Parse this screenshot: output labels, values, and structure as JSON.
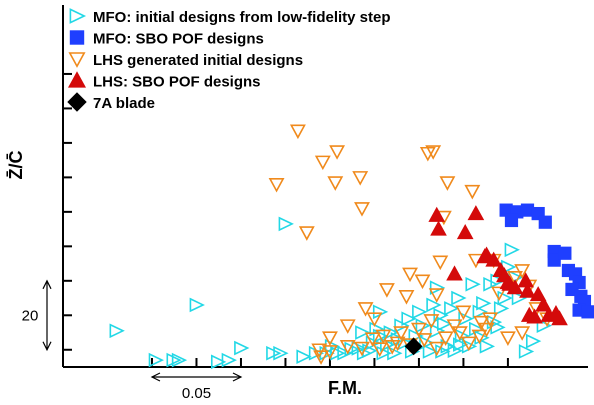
{
  "chart_data": {
    "type": "scatter",
    "xlabel": "F.M.",
    "ylabel": "Z̄/C̄",
    "xlim": [
      -0.05,
      0.245
    ],
    "ylim": [
      -5,
      100
    ],
    "x_ticks": [
      0,
      0.025,
      0.05,
      0.075,
      0.1,
      0.125,
      0.15,
      0.175,
      0.2
    ],
    "y_ticks": [
      0,
      10,
      20,
      30,
      40,
      50,
      60,
      70,
      80
    ],
    "scale_annotations": {
      "x_text": "0.05",
      "y_text": "20"
    },
    "grid": false,
    "legend": "top-left",
    "series": [
      {
        "name": "MFO: initial designs from low-fidelity step",
        "marker": "triangle-right-open",
        "color": "#22d8e6",
        "points": [
          [
            -0.02,
            5.5
          ],
          [
            0.002,
            -3
          ],
          [
            0.012,
            -3
          ],
          [
            0.015,
            -3
          ],
          [
            0.025,
            13
          ],
          [
            0.037,
            -3.5
          ],
          [
            0.043,
            -3
          ],
          [
            0.05,
            0.5
          ],
          [
            0.075,
            36.5
          ],
          [
            0.068,
            -1
          ],
          [
            0.072,
            -1
          ],
          [
            0.085,
            -2
          ],
          [
            0.092,
            -1
          ],
          [
            0.098,
            -1
          ],
          [
            0.101,
            1
          ],
          [
            0.104,
            -1
          ],
          [
            0.108,
            -1
          ],
          [
            0.112,
            0.2
          ],
          [
            0.116,
            0.4
          ],
          [
            0.119,
            -1
          ],
          [
            0.122,
            -0.3
          ],
          [
            0.124,
            2
          ],
          [
            0.126,
            6
          ],
          [
            0.128,
            4
          ],
          [
            0.13,
            -1
          ],
          [
            0.132,
            1.5
          ],
          [
            0.134,
            5
          ],
          [
            0.136,
            -1
          ],
          [
            0.138,
            3
          ],
          [
            0.14,
            7
          ],
          [
            0.142,
            2
          ],
          [
            0.144,
            9
          ],
          [
            0.146,
            -0.5
          ],
          [
            0.148,
            4
          ],
          [
            0.15,
            11
          ],
          [
            0.152,
            7
          ],
          [
            0.154,
            2
          ],
          [
            0.156,
            -0.5
          ],
          [
            0.158,
            13
          ],
          [
            0.16,
            5.5
          ],
          [
            0.162,
            10
          ],
          [
            0.164,
            7.5
          ],
          [
            0.166,
            1
          ],
          [
            0.168,
            12
          ],
          [
            0.17,
            -0.3
          ],
          [
            0.172,
            15
          ],
          [
            0.174,
            4
          ],
          [
            0.176,
            9
          ],
          [
            0.178,
            1
          ],
          [
            0.18,
            19
          ],
          [
            0.182,
            6
          ],
          [
            0.184,
            11
          ],
          [
            0.186,
            13.5
          ],
          [
            0.188,
            1
          ],
          [
            0.19,
            19
          ],
          [
            0.192,
            8
          ],
          [
            0.194,
            20
          ],
          [
            0.196,
            12
          ],
          [
            0.198,
            15
          ],
          [
            0.2,
            24
          ],
          [
            0.202,
            29
          ],
          [
            0.204,
            21
          ],
          [
            0.206,
            15
          ],
          [
            0.21,
            -0.5
          ],
          [
            0.214,
            2.5
          ],
          [
            0.22,
            7
          ],
          [
            0.16,
            18
          ],
          [
            0.118,
            5
          ],
          [
            0.128,
            11
          ],
          [
            0.163,
            -0.5
          ],
          [
            0.173,
            1.5
          ],
          [
            0.185,
            3.5
          ],
          [
            0.194,
            6.5
          ]
        ]
      },
      {
        "name": "MFO: SBO POF designs",
        "marker": "square",
        "color": "#1f3fff",
        "points": [
          [
            0.199,
            40.5
          ],
          [
            0.205,
            40
          ],
          [
            0.211,
            40.5
          ],
          [
            0.217,
            39.5
          ],
          [
            0.202,
            37.5
          ],
          [
            0.221,
            37
          ],
          [
            0.226,
            28.5
          ],
          [
            0.226,
            26
          ],
          [
            0.232,
            28
          ],
          [
            0.234,
            23
          ],
          [
            0.238,
            22
          ],
          [
            0.24,
            19.5
          ],
          [
            0.236,
            17.5
          ],
          [
            0.241,
            15.5
          ],
          [
            0.243,
            14
          ],
          [
            0.24,
            11.5
          ],
          [
            0.245,
            11
          ]
        ]
      },
      {
        "name": "LHS generated initial designs",
        "marker": "triangle-down-open",
        "color": "#f08a1c",
        "points": [
          [
            0.082,
            63.5
          ],
          [
            0.096,
            54.5
          ],
          [
            0.104,
            57.5
          ],
          [
            0.07,
            48
          ],
          [
            0.087,
            34
          ],
          [
            0.103,
            48.5
          ],
          [
            0.117,
            50
          ],
          [
            0.118,
            41
          ],
          [
            0.155,
            57
          ],
          [
            0.158,
            57.5
          ],
          [
            0.166,
            48.5
          ],
          [
            0.164,
            38.5
          ],
          [
            0.18,
            46
          ],
          [
            0.162,
            25.5
          ],
          [
            0.182,
            26
          ],
          [
            0.192,
            26
          ],
          [
            0.145,
            22
          ],
          [
            0.152,
            20
          ],
          [
            0.16,
            16
          ],
          [
            0.132,
            17.5
          ],
          [
            0.143,
            15.5
          ],
          [
            0.12,
            12
          ],
          [
            0.125,
            9
          ],
          [
            0.11,
            7
          ],
          [
            0.1,
            3.5
          ],
          [
            0.124,
            3.2
          ],
          [
            0.13,
            4
          ],
          [
            0.135,
            1
          ],
          [
            0.14,
            5
          ],
          [
            0.15,
            6
          ],
          [
            0.157,
            8.5
          ],
          [
            0.165,
            3.5
          ],
          [
            0.17,
            7
          ],
          [
            0.175,
            11
          ],
          [
            0.19,
            9
          ],
          [
            0.1,
            -0.5
          ],
          [
            0.095,
            -2
          ],
          [
            0.094,
            0
          ],
          [
            0.11,
            1
          ],
          [
            0.118,
            0.5
          ],
          [
            0.128,
            0.3
          ],
          [
            0.138,
            2
          ],
          [
            0.145,
            1.5
          ],
          [
            0.153,
            3
          ],
          [
            0.16,
            0.5
          ],
          [
            0.173,
            5
          ],
          [
            0.178,
            2
          ],
          [
            0.184,
            4
          ],
          [
            0.188,
            6
          ],
          [
            0.195,
            16.5
          ],
          [
            0.204,
            21
          ],
          [
            0.208,
            23
          ],
          [
            0.212,
            18.5
          ],
          [
            0.216,
            12
          ],
          [
            0.222,
            9
          ],
          [
            0.208,
            5
          ],
          [
            0.2,
            3.5
          ],
          [
            0.185,
            8
          ]
        ]
      },
      {
        "name": "LHS: SBO POF designs",
        "marker": "triangle-up",
        "color": "#d40a0a",
        "points": [
          [
            0.16,
            39
          ],
          [
            0.161,
            35
          ],
          [
            0.176,
            34
          ],
          [
            0.182,
            39.5
          ],
          [
            0.187,
            27
          ],
          [
            0.188,
            27.5
          ],
          [
            0.192,
            26
          ],
          [
            0.196,
            23
          ],
          [
            0.198,
            21.5
          ],
          [
            0.201,
            19
          ],
          [
            0.21,
            20
          ],
          [
            0.204,
            18
          ],
          [
            0.211,
            17
          ],
          [
            0.217,
            16
          ],
          [
            0.22,
            13
          ],
          [
            0.223,
            10
          ],
          [
            0.227,
            10.5
          ],
          [
            0.229,
            9
          ],
          [
            0.212,
            10
          ],
          [
            0.17,
            22
          ],
          [
            0.215,
            9.5
          ],
          [
            0.2,
            19.5
          ]
        ]
      },
      {
        "name": "7A blade",
        "marker": "diamond",
        "color": "#000000",
        "points": [
          [
            0.147,
            1
          ]
        ]
      }
    ]
  }
}
